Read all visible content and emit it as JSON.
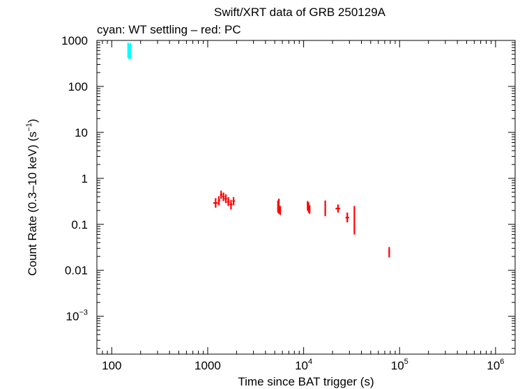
{
  "chart_data": {
    "type": "scatter",
    "title": "Swift/XRT data of GRB 250129A",
    "subtitle": "cyan: WT settling – red: PC",
    "xlabel": "Time since BAT trigger (s)",
    "ylabel_main": "Count Rate (0.3–10 keV) (s",
    "ylabel_sup": "−1",
    "ylabel_end": ")",
    "xscale": "log",
    "yscale": "log",
    "xlim": [
      70,
      1600000
    ],
    "ylim": [
      0.00015,
      1000
    ],
    "x_ticks": [
      {
        "value": 100,
        "base": "100",
        "sup": ""
      },
      {
        "value": 1000,
        "base": "1000",
        "sup": ""
      },
      {
        "value": 10000,
        "base": "10",
        "sup": "4"
      },
      {
        "value": 100000,
        "base": "10",
        "sup": "5"
      },
      {
        "value": 1000000,
        "base": "10",
        "sup": "6"
      }
    ],
    "y_ticks": [
      {
        "value": 1000,
        "base": "1000",
        "sup": ""
      },
      {
        "value": 100,
        "base": "100",
        "sup": ""
      },
      {
        "value": 10,
        "base": "10",
        "sup": ""
      },
      {
        "value": 1,
        "base": "1",
        "sup": ""
      },
      {
        "value": 0.1,
        "base": "0.1",
        "sup": ""
      },
      {
        "value": 0.01,
        "base": "0.01",
        "sup": ""
      },
      {
        "value": 0.001,
        "base": "10",
        "sup": "−3"
      }
    ],
    "series": [
      {
        "name": "WT settling",
        "color": "#00ffff",
        "points": [
          {
            "x": 148,
            "xlo": 146,
            "xhi": 150,
            "y": 640,
            "ylo": 420,
            "yhi": 900
          },
          {
            "x": 152,
            "xlo": 150,
            "xhi": 155,
            "y": 560,
            "ylo": 380,
            "yhi": 830
          },
          {
            "x": 156,
            "xlo": 154,
            "xhi": 158,
            "y": 600,
            "ylo": 400,
            "yhi": 880
          }
        ]
      },
      {
        "name": "PC",
        "color": "#ff0000",
        "points": [
          {
            "x": 1210,
            "xlo": 1140,
            "xhi": 1280,
            "y": 0.29,
            "ylo": 0.23,
            "yhi": 0.37
          },
          {
            "x": 1310,
            "xlo": 1280,
            "xhi": 1345,
            "y": 0.33,
            "ylo": 0.26,
            "yhi": 0.41
          },
          {
            "x": 1380,
            "xlo": 1345,
            "xhi": 1420,
            "y": 0.44,
            "ylo": 0.36,
            "yhi": 0.54
          },
          {
            "x": 1460,
            "xlo": 1420,
            "xhi": 1500,
            "y": 0.4,
            "ylo": 0.32,
            "yhi": 0.49
          },
          {
            "x": 1545,
            "xlo": 1500,
            "xhi": 1590,
            "y": 0.36,
            "ylo": 0.29,
            "yhi": 0.45
          },
          {
            "x": 1640,
            "xlo": 1590,
            "xhi": 1690,
            "y": 0.31,
            "ylo": 0.25,
            "yhi": 0.39
          },
          {
            "x": 1750,
            "xlo": 1690,
            "xhi": 1810,
            "y": 0.27,
            "ylo": 0.21,
            "yhi": 0.34
          },
          {
            "x": 1860,
            "xlo": 1810,
            "xhi": 1920,
            "y": 0.32,
            "ylo": 0.26,
            "yhi": 0.39
          },
          {
            "x": 5400,
            "xlo": 5350,
            "xhi": 5460,
            "y": 0.24,
            "ylo": 0.18,
            "yhi": 0.33
          },
          {
            "x": 5520,
            "xlo": 5460,
            "xhi": 5600,
            "y": 0.22,
            "ylo": 0.17,
            "yhi": 0.36
          },
          {
            "x": 5700,
            "xlo": 5600,
            "xhi": 5820,
            "y": 0.2,
            "ylo": 0.16,
            "yhi": 0.25
          },
          {
            "x": 11000,
            "xlo": 10900,
            "xhi": 11100,
            "y": 0.26,
            "ylo": 0.2,
            "yhi": 0.32
          },
          {
            "x": 11250,
            "xlo": 11150,
            "xhi": 11350,
            "y": 0.22,
            "ylo": 0.18,
            "yhi": 0.3
          },
          {
            "x": 11550,
            "xlo": 11450,
            "xhi": 11650,
            "y": 0.2,
            "ylo": 0.17,
            "yhi": 0.26
          },
          {
            "x": 16800,
            "xlo": 16600,
            "xhi": 17000,
            "y": 0.23,
            "ylo": 0.15,
            "yhi": 0.33
          },
          {
            "x": 22800,
            "xlo": 21500,
            "xhi": 24000,
            "y": 0.22,
            "ylo": 0.18,
            "yhi": 0.27
          },
          {
            "x": 28500,
            "xlo": 27300,
            "xhi": 29700,
            "y": 0.14,
            "ylo": 0.11,
            "yhi": 0.18
          },
          {
            "x": 33800,
            "xlo": 33500,
            "xhi": 34100,
            "y": 0.14,
            "ylo": 0.06,
            "yhi": 0.25
          },
          {
            "x": 78000,
            "xlo": 76500,
            "xhi": 79500,
            "y": 0.025,
            "ylo": 0.019,
            "yhi": 0.032
          }
        ]
      }
    ]
  }
}
